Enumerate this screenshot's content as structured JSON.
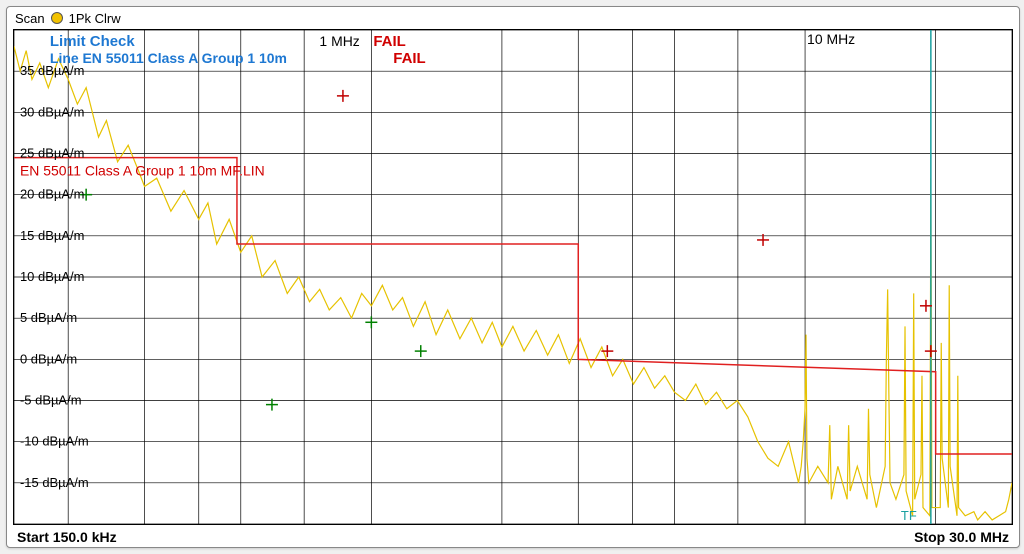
{
  "header": {
    "scan_label": "Scan",
    "trace_dot_color": "#f2c200",
    "trace_mode": "1Pk Clrw"
  },
  "footer": {
    "start_label": "Start 150.0 kHz",
    "stop_label": "Stop 30.0 MHz"
  },
  "overlay": {
    "limit_check": "Limit Check",
    "limit_check_status": "FAIL",
    "line_name": "Line EN 55011 Class A Group 1 10m",
    "line_status": "FAIL",
    "limit_line_label": "EN 55011 Class A Group 1 10m MF.LIN",
    "x_marker_1": "1 MHz",
    "x_marker_10": "10 MHz",
    "tf_label": "TF"
  },
  "chart": {
    "type": "spectrum",
    "background_color": "#ffffff",
    "grid_color": "#000000",
    "axis_font": "Arial",
    "axis_fontsize": 12,
    "x_axis": {
      "scale": "log",
      "min_hz": 150000,
      "max_hz": 30000000,
      "major_ticks_hz": [
        150000,
        200000,
        300000,
        400000,
        500000,
        700000,
        1000000,
        2000000,
        3000000,
        4000000,
        5000000,
        7000000,
        10000000,
        20000000,
        30000000
      ]
    },
    "y_axis": {
      "unit": "dBµA/m",
      "min": -20,
      "max": 40,
      "tick_step": 5,
      "tick_labels": [
        "35 dBµA/m",
        "30 dBµA/m",
        "25 dBµA/m",
        "20 dBµA/m",
        "15 dBµA/m",
        "10 dBµA/m",
        "5 dBµA/m",
        "0 dBµA/m",
        "-5 dBµA/m",
        "-10 dBµA/m",
        "-15 dBµA/m"
      ]
    },
    "limit_line": {
      "color": "#e02020",
      "width": 1.5,
      "segments": [
        {
          "f_hz": 150000,
          "db": 24.5
        },
        {
          "f_hz": 490000,
          "db": 24.5
        },
        {
          "f_hz": 490000,
          "db": 14.0
        },
        {
          "f_hz": 3000000,
          "db": 14.0
        },
        {
          "f_hz": 3000000,
          "db": 0.0
        },
        {
          "f_hz": 20000000,
          "db": -1.5
        },
        {
          "f_hz": 20000000,
          "db": -11.5
        },
        {
          "f_hz": 30000000,
          "db": -11.5
        }
      ]
    },
    "markers_plus": {
      "color": "#c00000",
      "points": [
        {
          "f_hz": 860000,
          "db": 32.0
        },
        {
          "f_hz": 3500000,
          "db": 1.0
        },
        {
          "f_hz": 8000000,
          "db": 14.5
        },
        {
          "f_hz": 19500000,
          "db": 1.0
        },
        {
          "f_hz": 19000000,
          "db": 6.5
        }
      ]
    },
    "markers_plus_green": {
      "color": "#008000",
      "points": [
        {
          "f_hz": 220000,
          "db": 20.0
        },
        {
          "f_hz": 590000,
          "db": -5.5
        },
        {
          "f_hz": 1000000,
          "db": 4.5
        },
        {
          "f_hz": 1300000,
          "db": 1.0
        }
      ]
    },
    "vertical_line": {
      "color": "#1aa0a0",
      "f_hz": 19500000
    },
    "trace": {
      "color": "#e6c200",
      "width": 1.2,
      "points": [
        [
          150000,
          38
        ],
        [
          155000,
          35
        ],
        [
          160000,
          37.5
        ],
        [
          165000,
          34
        ],
        [
          172000,
          36
        ],
        [
          180000,
          33
        ],
        [
          190000,
          36.5
        ],
        [
          200000,
          34
        ],
        [
          210000,
          31
        ],
        [
          220000,
          33
        ],
        [
          235000,
          27
        ],
        [
          245000,
          29
        ],
        [
          260000,
          24
        ],
        [
          275000,
          26
        ],
        [
          290000,
          23
        ],
        [
          300000,
          21
        ],
        [
          320000,
          22
        ],
        [
          345000,
          18
        ],
        [
          370000,
          20.5
        ],
        [
          400000,
          17
        ],
        [
          420000,
          19
        ],
        [
          440000,
          14
        ],
        [
          470000,
          17
        ],
        [
          500000,
          13
        ],
        [
          530000,
          15
        ],
        [
          560000,
          10
        ],
        [
          600000,
          12
        ],
        [
          640000,
          8
        ],
        [
          680000,
          10
        ],
        [
          720000,
          7
        ],
        [
          760000,
          8.5
        ],
        [
          800000,
          6
        ],
        [
          850000,
          7.5
        ],
        [
          900000,
          5
        ],
        [
          950000,
          8
        ],
        [
          1000000,
          6.5
        ],
        [
          1060000,
          9
        ],
        [
          1120000,
          6
        ],
        [
          1180000,
          7.5
        ],
        [
          1250000,
          4
        ],
        [
          1330000,
          7
        ],
        [
          1410000,
          3
        ],
        [
          1500000,
          6
        ],
        [
          1600000,
          2.5
        ],
        [
          1700000,
          5
        ],
        [
          1800000,
          2
        ],
        [
          1900000,
          4.5
        ],
        [
          2000000,
          1.5
        ],
        [
          2120000,
          4
        ],
        [
          2250000,
          1
        ],
        [
          2400000,
          3.5
        ],
        [
          2550000,
          0.5
        ],
        [
          2700000,
          3
        ],
        [
          2860000,
          -0.5
        ],
        [
          3030000,
          2.5
        ],
        [
          3210000,
          -1
        ],
        [
          3400000,
          1.5
        ],
        [
          3600000,
          -2
        ],
        [
          3800000,
          0
        ],
        [
          4020000,
          -3
        ],
        [
          4250000,
          -1
        ],
        [
          4500000,
          -3.5
        ],
        [
          4750000,
          -2
        ],
        [
          5000000,
          -4
        ],
        [
          5300000,
          -5
        ],
        [
          5600000,
          -3
        ],
        [
          5900000,
          -5.5
        ],
        [
          6250000,
          -4
        ],
        [
          6600000,
          -6
        ],
        [
          6980000,
          -5
        ],
        [
          7380000,
          -7
        ],
        [
          7780000,
          -10
        ],
        [
          8210000,
          -12
        ],
        [
          8670000,
          -13
        ],
        [
          9160000,
          -10
        ],
        [
          9660000,
          -15
        ],
        [
          9800000,
          -13
        ],
        [
          9900000,
          -10
        ],
        [
          10000000,
          -6
        ],
        [
          10050000,
          3
        ],
        [
          10100000,
          -12
        ],
        [
          10200000,
          -15
        ],
        [
          10700000,
          -13
        ],
        [
          11300000,
          -15
        ],
        [
          11400000,
          -8
        ],
        [
          11500000,
          -17
        ],
        [
          11900000,
          -13
        ],
        [
          12500000,
          -17
        ],
        [
          12600000,
          -8
        ],
        [
          12700000,
          -16
        ],
        [
          13200000,
          -13
        ],
        [
          13900000,
          -17
        ],
        [
          14000000,
          -6
        ],
        [
          14100000,
          -14
        ],
        [
          14600000,
          -18
        ],
        [
          15300000,
          -13
        ],
        [
          15400000,
          0
        ],
        [
          15500000,
          8.5
        ],
        [
          15600000,
          -4
        ],
        [
          15700000,
          -15
        ],
        [
          16200000,
          -17
        ],
        [
          16900000,
          -14
        ],
        [
          17000000,
          4
        ],
        [
          17100000,
          -16
        ],
        [
          17700000,
          -19
        ],
        [
          17800000,
          8
        ],
        [
          17900000,
          -17
        ],
        [
          18500000,
          -14
        ],
        [
          18600000,
          -2
        ],
        [
          18700000,
          -18
        ],
        [
          19400000,
          -19
        ],
        [
          19500000,
          22
        ],
        [
          19600000,
          -18
        ],
        [
          20500000,
          -18
        ],
        [
          20600000,
          2
        ],
        [
          20700000,
          -12
        ],
        [
          21400000,
          -18
        ],
        [
          21500000,
          9
        ],
        [
          21600000,
          -13
        ],
        [
          22400000,
          -19
        ],
        [
          22500000,
          -2
        ],
        [
          22600000,
          -18
        ],
        [
          23400000,
          -19
        ],
        [
          24500000,
          -18.5
        ],
        [
          25000000,
          -19.5
        ],
        [
          26000000,
          -18.5
        ],
        [
          27000000,
          -19.5
        ],
        [
          28000000,
          -19
        ],
        [
          29000000,
          -18.5
        ],
        [
          29500000,
          -17
        ],
        [
          30000000,
          -15
        ]
      ]
    }
  }
}
